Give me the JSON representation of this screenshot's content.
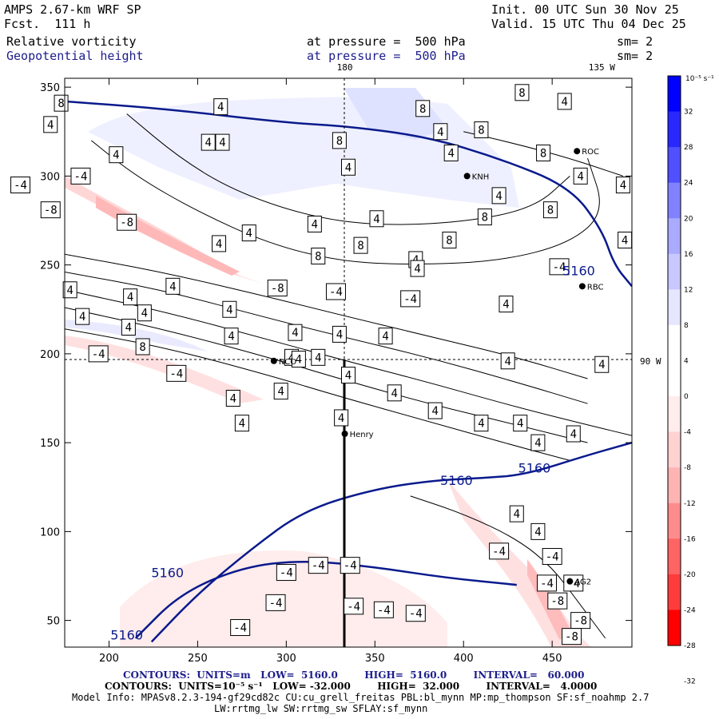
{
  "header": {
    "model": "AMPS 2.67-km WRF SP",
    "forecast": "Fcst.  111 h",
    "init": "Init. 00 UTC Sun 30 Nov 25",
    "valid": "Valid. 15 UTC Thu 04 Dec 25",
    "field1_name": "Relative vorticity",
    "field1_level": "at pressure =  500 hPa",
    "field1_sm": "sm= 2",
    "field2_name": "Geopotential height",
    "field2_level": "at pressure =  500 hPa",
    "field2_sm": "sm= 2"
  },
  "footer": {
    "contours_height": "CONTOURS:  UNITS=m   LOW=  5160.0        HIGH=  5160.0        INTERVAL=   60.000",
    "contours_vort": "CONTOURS:  UNITS=10⁻⁵ s⁻¹   LOW= -32.000        HIGH=  32.000        INTERVAL=   4.0000",
    "model_info": "Model Info: MPASv8.2.3-194-gf29cd82c CU:cu_grell_freitas PBL:bl_mynn MP:mp_thompson SF:sf_noahmp 2.7",
    "physics": "LW:rrtmg_lw SW:rrtmg_sw SFLAY:sf_mynn"
  },
  "colors": {
    "height_contour": "#0a1a8c",
    "vort_contour": "#000000",
    "cbar": [
      "#ff0000",
      "#ff3c3c",
      "#ff6464",
      "#ff8c8c",
      "#ffb4b4",
      "#ffd2d2",
      "#ffecec",
      "#ffffff",
      "#ffffff",
      "#e6e6ff",
      "#c8c8ff",
      "#aaaaff",
      "#8282ff",
      "#5050ff",
      "#2828ff",
      "#0000ff"
    ]
  },
  "chart_data": {
    "type": "contour_map",
    "title": "Relative vorticity and Geopotential height at 500 hPa",
    "xlim": [
      175,
      495
    ],
    "ylim": [
      35,
      355
    ],
    "x_ticks": [
      200,
      250,
      300,
      350,
      400,
      450
    ],
    "y_ticks": [
      50,
      100,
      150,
      200,
      250,
      300,
      350
    ],
    "longitude_labels": [
      {
        "text": "180",
        "x": 333
      },
      {
        "text": "135 W",
        "x": 478
      },
      {
        "text": "90 W",
        "y": 196
      }
    ],
    "colorbar": {
      "unit": "10⁻⁵ s⁻¹",
      "ticks": [
        32,
        28,
        24,
        20,
        16,
        12,
        8,
        4,
        0,
        -4,
        -8,
        -12,
        -16,
        -20,
        -24,
        -28,
        -32
      ]
    },
    "height_contours": {
      "units": "m",
      "low": 5160.0,
      "high": 5160.0,
      "interval": 60.0,
      "lines": [
        {
          "value": 5160,
          "points": [
            [
              175,
              342
            ],
            [
              230,
              338
            ],
            [
              300,
              330
            ],
            [
              335,
              328
            ],
            [
              380,
              322
            ],
            [
              420,
              310
            ],
            [
              460,
              294
            ],
            [
              478,
              270
            ],
            [
              485,
              250
            ],
            [
              495,
              238
            ]
          ]
        },
        {
          "value": 5160,
          "points": [
            [
              224,
              38
            ],
            [
              250,
              65
            ],
            [
              280,
              90
            ],
            [
              310,
              112
            ],
            [
              350,
              124
            ],
            [
              385,
              129
            ],
            [
              410,
              130
            ],
            [
              435,
              132
            ],
            [
              470,
              143
            ],
            [
              495,
              150
            ]
          ]
        },
        {
          "value": 5160,
          "points": [
            [
              215,
              40
            ],
            [
              240,
              65
            ],
            [
              275,
              80
            ],
            [
              310,
              84
            ],
            [
              350,
              80
            ],
            [
              390,
              74
            ],
            [
              430,
              70
            ]
          ]
        }
      ],
      "labels": [
        {
          "text": "5160",
          "x": 396,
          "y": 129
        },
        {
          "text": "5160",
          "x": 440,
          "y": 136
        },
        {
          "text": "5160",
          "x": 233,
          "y": 77
        },
        {
          "text": "5160",
          "x": 210,
          "y": 42
        },
        {
          "text": "5160",
          "x": 465,
          "y": 247
        }
      ]
    },
    "vorticity_contours": {
      "units": "10⁻⁵ s⁻¹",
      "low": -32.0,
      "high": 32.0,
      "interval": 4.0,
      "lines": [
        {
          "points": [
            [
              175,
              236
            ],
            [
              230,
              224
            ],
            [
              290,
              208
            ],
            [
              330,
              197
            ],
            [
              380,
              184
            ],
            [
              430,
              170
            ],
            [
              470,
              160
            ],
            [
              495,
              154
            ]
          ]
        },
        {
          "points": [
            [
              175,
              226
            ],
            [
              230,
              214
            ],
            [
              290,
              198
            ],
            [
              330,
              186
            ],
            [
              380,
              172
            ],
            [
              430,
              160
            ],
            [
              470,
              150
            ]
          ]
        },
        {
          "points": [
            [
              175,
              214
            ],
            [
              230,
              204
            ],
            [
              290,
              188
            ],
            [
              330,
              176
            ],
            [
              380,
              162
            ],
            [
              430,
              148
            ],
            [
              460,
              140
            ]
          ]
        },
        {
          "points": [
            [
              175,
              246
            ],
            [
              230,
              236
            ],
            [
              290,
              220
            ],
            [
              330,
              210
            ],
            [
              380,
              198
            ],
            [
              430,
              184
            ],
            [
              470,
              172
            ]
          ]
        },
        {
          "points": [
            [
              175,
              256
            ],
            [
              230,
              246
            ],
            [
              290,
              232
            ],
            [
              330,
              222
            ],
            [
              380,
              210
            ],
            [
              430,
              198
            ],
            [
              470,
              186
            ]
          ]
        },
        {
          "points": [
            [
              190,
              320
            ],
            [
              215,
              300
            ],
            [
              250,
              280
            ],
            [
              290,
              262
            ],
            [
              330,
              252
            ],
            [
              370,
              250
            ],
            [
              420,
              252
            ],
            [
              460,
              262
            ],
            [
              480,
              280
            ],
            [
              470,
              310
            ]
          ]
        },
        {
          "points": [
            [
              210,
              335
            ],
            [
              240,
              310
            ],
            [
              270,
              292
            ],
            [
              310,
              278
            ],
            [
              350,
              272
            ],
            [
              400,
              274
            ],
            [
              440,
              282
            ],
            [
              460,
              300
            ]
          ]
        },
        {
          "points": [
            [
              370,
              120
            ],
            [
              400,
              110
            ],
            [
              430,
              96
            ],
            [
              450,
              80
            ],
            [
              465,
              60
            ],
            [
              480,
              40
            ]
          ]
        },
        {
          "points": [
            [
              400,
              325
            ],
            [
              430,
              318
            ],
            [
              460,
              310
            ],
            [
              490,
              300
            ]
          ]
        }
      ],
      "labels": [
        {
          "text": "4",
          "x": 263,
          "y": 339
        },
        {
          "text": "8",
          "x": 377,
          "y": 338
        },
        {
          "text": "8",
          "x": 173,
          "y": 341
        },
        {
          "text": "4",
          "x": 167,
          "y": 329
        },
        {
          "text": "4",
          "x": 256,
          "y": 319
        },
        {
          "text": "4",
          "x": 264,
          "y": 319
        },
        {
          "text": "4",
          "x": 204,
          "y": 312
        },
        {
          "text": "8",
          "x": 330,
          "y": 320
        },
        {
          "text": "4",
          "x": 387,
          "y": 325
        },
        {
          "text": "8",
          "x": 410,
          "y": 326
        },
        {
          "text": "8",
          "x": 433,
          "y": 347
        },
        {
          "text": "4",
          "x": 457,
          "y": 342
        },
        {
          "text": "8",
          "x": 445,
          "y": 313
        },
        {
          "text": "4",
          "x": 393,
          "y": 313
        },
        {
          "text": "4",
          "x": 335,
          "y": 305
        },
        {
          "text": "4",
          "x": 420,
          "y": 289
        },
        {
          "text": "8",
          "x": 412,
          "y": 277
        },
        {
          "text": "8",
          "x": 449,
          "y": 281
        },
        {
          "text": "4",
          "x": 351,
          "y": 276
        },
        {
          "text": "4",
          "x": 316,
          "y": 273
        },
        {
          "text": "4",
          "x": 279,
          "y": 268
        },
        {
          "text": "4",
          "x": 466,
          "y": 300
        },
        {
          "text": "4",
          "x": 490,
          "y": 295
        },
        {
          "text": "-4",
          "x": 184,
          "y": 300
        },
        {
          "text": "-4",
          "x": 150,
          "y": 295
        },
        {
          "text": "-4",
          "x": 123,
          "y": 289
        },
        {
          "text": "-8",
          "x": 167,
          "y": 281
        },
        {
          "text": "-8",
          "x": 210,
          "y": 274
        },
        {
          "text": "4",
          "x": 262,
          "y": 262
        },
        {
          "text": "8",
          "x": 318,
          "y": 255
        },
        {
          "text": "4",
          "x": 373,
          "y": 253
        },
        {
          "text": "8",
          "x": 342,
          "y": 261
        },
        {
          "text": "8",
          "x": 392,
          "y": 264
        },
        {
          "text": "4",
          "x": 374,
          "y": 248
        },
        {
          "text": "4",
          "x": 491,
          "y": 264
        },
        {
          "text": "-4",
          "x": 454,
          "y": 249
        },
        {
          "text": "-8",
          "x": 295,
          "y": 237
        },
        {
          "text": "-4",
          "x": 328,
          "y": 235
        },
        {
          "text": "-4",
          "x": 370,
          "y": 231
        },
        {
          "text": "4",
          "x": 236,
          "y": 238
        },
        {
          "text": "4",
          "x": 178,
          "y": 236
        },
        {
          "text": "4",
          "x": 212,
          "y": 232
        },
        {
          "text": "4",
          "x": 268,
          "y": 225
        },
        {
          "text": "4",
          "x": 185,
          "y": 221
        },
        {
          "text": "4",
          "x": 220,
          "y": 223
        },
        {
          "text": "4",
          "x": 424,
          "y": 228
        },
        {
          "text": "4",
          "x": 211,
          "y": 215
        },
        {
          "text": "4",
          "x": 269,
          "y": 210
        },
        {
          "text": "4",
          "x": 305,
          "y": 212
        },
        {
          "text": "4",
          "x": 330,
          "y": 211
        },
        {
          "text": "4",
          "x": 356,
          "y": 210
        },
        {
          "text": "-4",
          "x": 194,
          "y": 200
        },
        {
          "text": "8",
          "x": 219,
          "y": 204
        },
        {
          "text": "4",
          "x": 303,
          "y": 198
        },
        {
          "text": "4",
          "x": 307,
          "y": 197
        },
        {
          "text": "4",
          "x": 318,
          "y": 198
        },
        {
          "text": "4",
          "x": 425,
          "y": 196
        },
        {
          "text": "4",
          "x": 478,
          "y": 194
        },
        {
          "text": "-4",
          "x": 238,
          "y": 189
        },
        {
          "text": "4",
          "x": 335,
          "y": 188
        },
        {
          "text": "4",
          "x": 297,
          "y": 179
        },
        {
          "text": "4",
          "x": 270,
          "y": 175
        },
        {
          "text": "4",
          "x": 361,
          "y": 178
        },
        {
          "text": "4",
          "x": 432,
          "y": 161
        },
        {
          "text": "4",
          "x": 384,
          "y": 168
        },
        {
          "text": "4",
          "x": 410,
          "y": 161
        },
        {
          "text": "4",
          "x": 442,
          "y": 150
        },
        {
          "text": "4",
          "x": 275,
          "y": 161
        },
        {
          "text": "4",
          "x": 331,
          "y": 164
        },
        {
          "text": "4",
          "x": 462,
          "y": 155
        },
        {
          "text": "4",
          "x": 430,
          "y": 110
        },
        {
          "text": "4",
          "x": 442,
          "y": 100
        },
        {
          "text": "-4",
          "x": 420,
          "y": 89
        },
        {
          "text": "-4",
          "x": 450,
          "y": 86
        },
        {
          "text": "-4",
          "x": 318,
          "y": 81
        },
        {
          "text": "-4",
          "x": 336,
          "y": 81
        },
        {
          "text": "-4",
          "x": 300,
          "y": 77
        },
        {
          "text": "-4",
          "x": 294,
          "y": 60
        },
        {
          "text": "-4",
          "x": 338,
          "y": 58
        },
        {
          "text": "-4",
          "x": 373,
          "y": 54
        },
        {
          "text": "-4",
          "x": 462,
          "y": 71
        },
        {
          "text": "-4",
          "x": 447,
          "y": 71
        },
        {
          "text": "-8",
          "x": 453,
          "y": 61
        },
        {
          "text": "-4",
          "x": 355,
          "y": 56
        },
        {
          "text": "-8",
          "x": 466,
          "y": 50
        },
        {
          "text": "-4",
          "x": 274,
          "y": 46
        },
        {
          "text": "-8",
          "x": 461,
          "y": 41
        }
      ]
    },
    "stations": [
      {
        "name": "NCO",
        "x": 293,
        "y": 196
      },
      {
        "name": "Henry",
        "x": 333,
        "y": 155
      },
      {
        "name": "AG2",
        "x": 460,
        "y": 72
      },
      {
        "name": "RBC",
        "x": 467,
        "y": 238
      },
      {
        "name": "KNH",
        "x": 402,
        "y": 300
      },
      {
        "name": "ROC",
        "x": 464,
        "y": 314
      }
    ]
  }
}
